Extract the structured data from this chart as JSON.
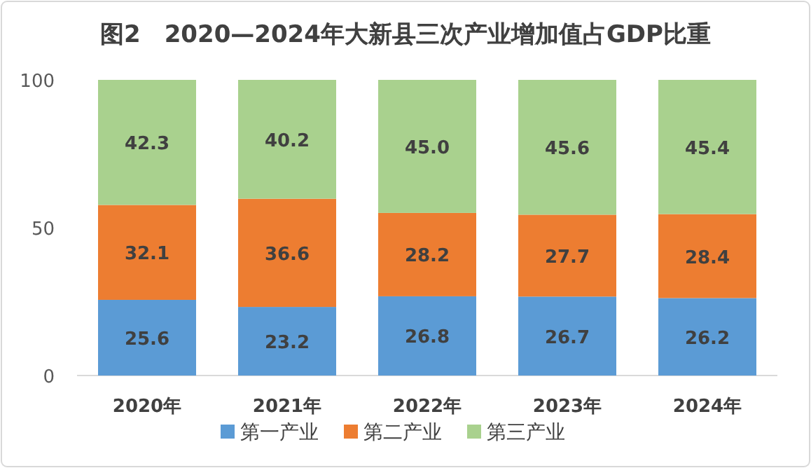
{
  "chart_data": {
    "type": "bar",
    "stacked": true,
    "title": "图2　2020—2024年大新县三次产业增加值占GDP比重",
    "categories": [
      "2020年",
      "2021年",
      "2022年",
      "2023年",
      "2024年"
    ],
    "series": [
      {
        "name": "第一产业",
        "color": "#5b9bd5",
        "values": [
          25.6,
          23.2,
          26.8,
          26.7,
          26.2
        ]
      },
      {
        "name": "第二产业",
        "color": "#ed7d31",
        "values": [
          32.1,
          36.6,
          28.2,
          27.7,
          28.4
        ]
      },
      {
        "name": "第三产业",
        "color": "#a9d18e",
        "values": [
          42.3,
          40.2,
          45.0,
          45.6,
          45.4
        ],
        "value_labels": [
          "42.3",
          "40.2",
          "45.0",
          "45.6",
          "45.4"
        ]
      }
    ],
    "ylim": [
      0,
      100
    ],
    "yticks": [
      0,
      50,
      100
    ],
    "data_labels": true,
    "legend": "bottom",
    "grid": false
  }
}
